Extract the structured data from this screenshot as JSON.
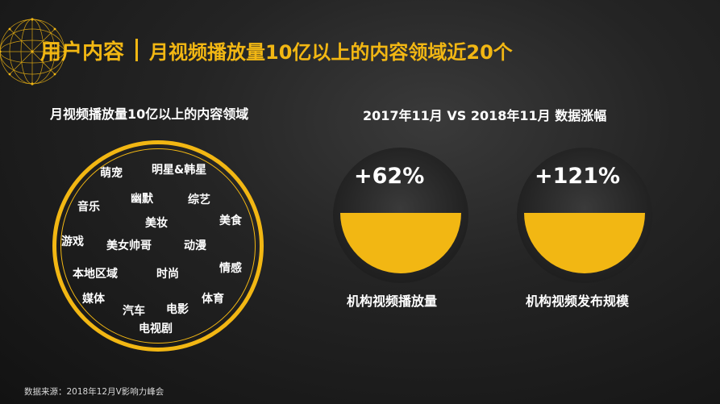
{
  "header": {
    "main": "用户内容",
    "sub": "月视频播放量10亿以上的内容领域近20个"
  },
  "left": {
    "heading": "月视频播放量10亿以上的内容领域",
    "tags": [
      "萌宠",
      "明星&韩星",
      "音乐",
      "幽默",
      "综艺",
      "美妆",
      "美食",
      "游戏",
      "美女帅哥",
      "动漫",
      "本地区域",
      "时尚",
      "情感",
      "媒体",
      "体育",
      "汽车",
      "电影",
      "电视剧"
    ]
  },
  "right": {
    "heading": "2017年11月 VS 2018年11月 数据涨幅",
    "metrics": [
      {
        "value": "+62%",
        "label": "机构视频播放量"
      },
      {
        "value": "+121%",
        "label": "机构视频发布规模"
      }
    ]
  },
  "footer": {
    "source": "数据来源：2018年12月V影响力峰会"
  },
  "colors": {
    "accent": "#f2b713",
    "gauge_bg": "#2e2e2e"
  }
}
